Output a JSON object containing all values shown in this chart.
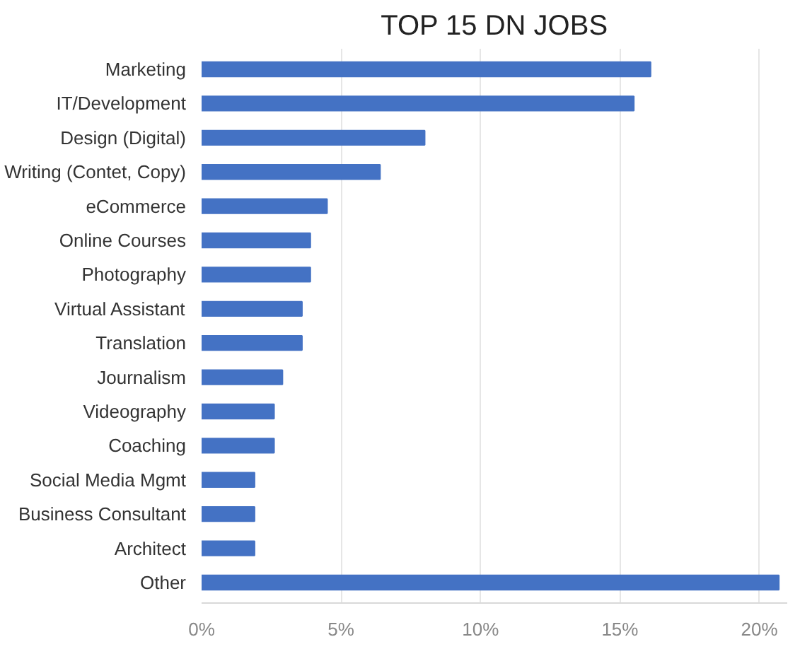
{
  "chart_data": {
    "type": "bar",
    "orientation": "horizontal",
    "title": "TOP 15 DN JOBS",
    "categories": [
      "Marketing",
      "IT/Development",
      "Design (Digital)",
      "Writing (Contet, Copy)",
      "eCommerce",
      "Online Courses",
      "Photography",
      "Virtual Assistant",
      "Translation",
      "Journalism",
      "Videography",
      "Coaching",
      "Social Media Mgmt",
      "Business Consultant",
      "Architect",
      "Other"
    ],
    "values": [
      16.1,
      15.5,
      8.0,
      6.4,
      4.5,
      3.9,
      3.9,
      3.6,
      3.6,
      2.9,
      2.6,
      2.6,
      1.9,
      1.9,
      1.9,
      20.7
    ],
    "color": "#4472c4",
    "xlim": [
      0,
      21
    ],
    "xticks": [
      {
        "value": 0,
        "label": "0%"
      },
      {
        "value": 5,
        "label": "5%"
      },
      {
        "value": 10,
        "label": "10%"
      },
      {
        "value": 15,
        "label": "15%"
      },
      {
        "value": 20,
        "label": "20%"
      }
    ],
    "grid": "x"
  }
}
